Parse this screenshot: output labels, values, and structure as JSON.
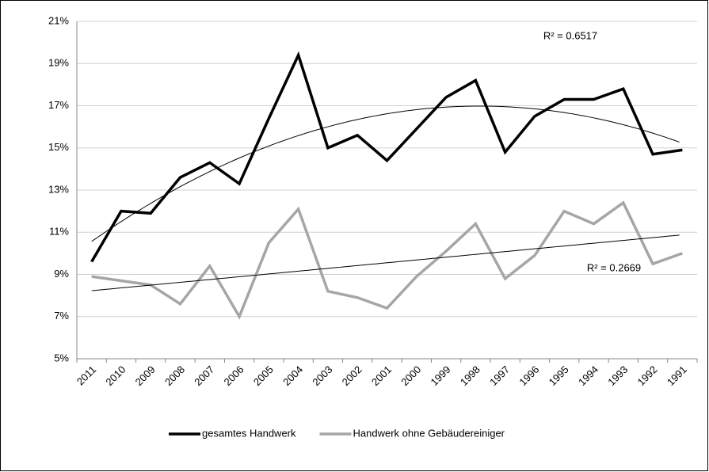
{
  "chart_data": {
    "type": "line",
    "categories": [
      "2011",
      "2010",
      "2009",
      "2008",
      "2007",
      "2006",
      "2005",
      "2004",
      "2003",
      "2002",
      "2001",
      "2000",
      "1999",
      "1998",
      "1997",
      "1996",
      "1995",
      "1994",
      "1993",
      "1992",
      "1991"
    ],
    "series": [
      {
        "name": "gesamtes Handwerk",
        "color": "#000000",
        "trendline": "poly2",
        "values": [
          9.6,
          12.0,
          11.9,
          13.6,
          14.3,
          13.3,
          16.4,
          19.4,
          15.0,
          15.6,
          14.4,
          15.9,
          17.4,
          18.2,
          14.8,
          16.5,
          17.3,
          17.3,
          17.8,
          14.7,
          14.9
        ]
      },
      {
        "name": "Handwerk ohne Gebäudereiniger",
        "color": "#a6a6a6",
        "trendline": "linear",
        "values": [
          8.9,
          8.7,
          8.5,
          7.6,
          9.4,
          7.0,
          10.5,
          12.1,
          8.2,
          7.9,
          7.4,
          8.9,
          10.1,
          11.4,
          8.8,
          9.9,
          12.0,
          11.4,
          12.4,
          9.5,
          10.0
        ]
      }
    ],
    "annotations": [
      "R² = 0.6517",
      "R² = 0.2669"
    ],
    "ylim": [
      5,
      21
    ],
    "yticks": [
      {
        "value": 5,
        "label": "5%"
      },
      {
        "value": 7,
        "label": "7%"
      },
      {
        "value": 9,
        "label": "9%"
      },
      {
        "value": 11,
        "label": "11%"
      },
      {
        "value": 13,
        "label": "13%"
      },
      {
        "value": 15,
        "label": "15%"
      },
      {
        "value": 17,
        "label": "17%"
      },
      {
        "value": 19,
        "label": "19%"
      },
      {
        "value": 21,
        "label": "21%"
      }
    ],
    "grid": true,
    "legend": "bottom"
  }
}
